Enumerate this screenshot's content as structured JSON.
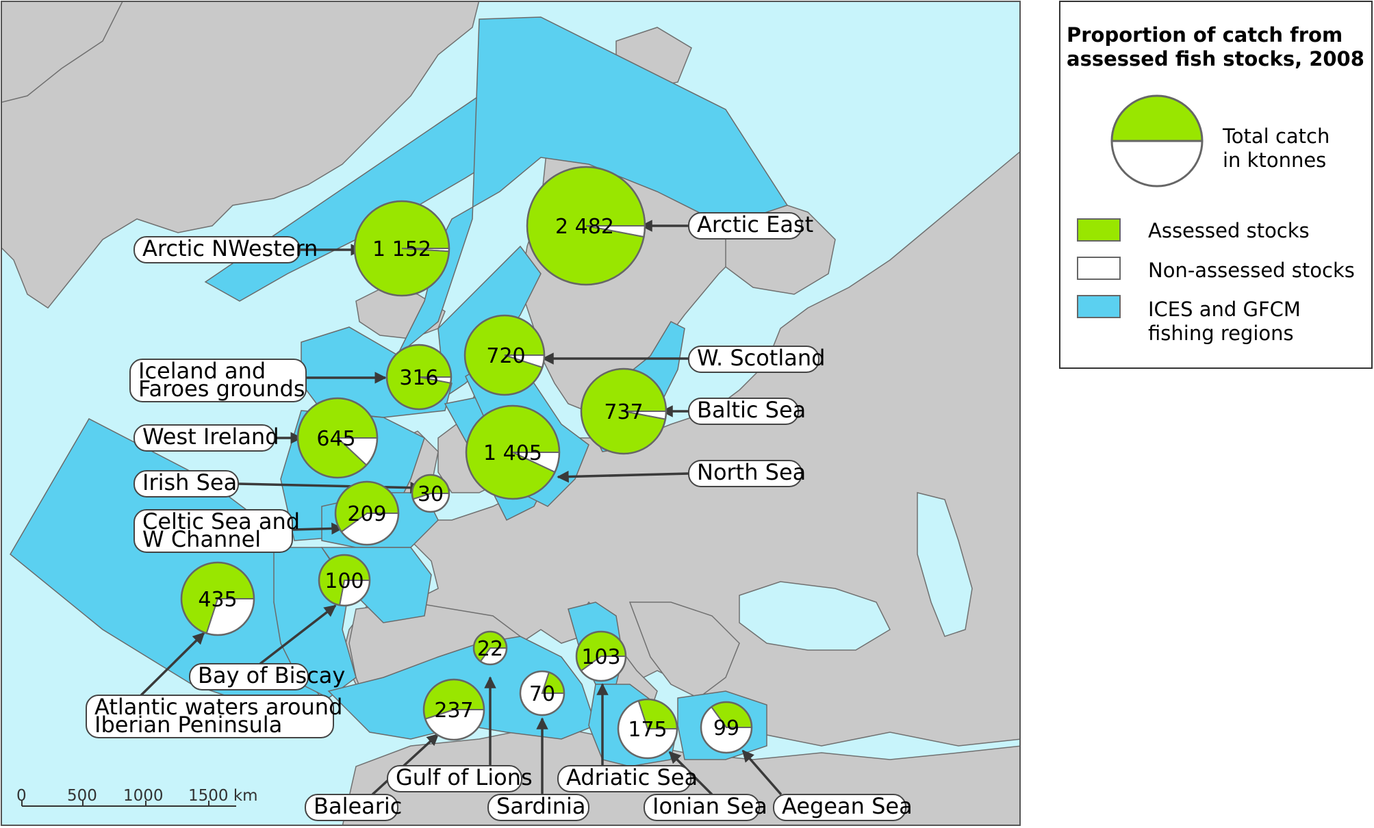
{
  "legend": {
    "title_line1": "Proportion of catch from",
    "title_line2": "assessed fish stocks, 2008",
    "circle_label_line1": "Total catch",
    "circle_label_line2": "in ktonnes",
    "assessed": "Assessed stocks",
    "non_assessed": "Non-assessed stocks",
    "regions_line1": "ICES and GFCM",
    "regions_line2": "fishing regions"
  },
  "colors": {
    "assessed": "#99e600",
    "non_assessed": "#ffffff",
    "regions": "#5bd0f0",
    "sea": "#c8f4fb",
    "land": "#c9c9c9"
  },
  "scale": {
    "ticks": [
      "0",
      "500",
      "1000",
      "1500 km"
    ]
  },
  "regions": [
    {
      "id": "arctic-nwestern",
      "label_lines": [
        "Arctic NWestern"
      ],
      "value": "1 152",
      "assessed_fraction": 0.99
    },
    {
      "id": "arctic-east",
      "label_lines": [
        "Arctic East"
      ],
      "value": "2 482",
      "assessed_fraction": 0.97
    },
    {
      "id": "iceland-faroes",
      "label_lines": [
        "Iceland and",
        "Faroes grounds"
      ],
      "value": "316",
      "assessed_fraction": 0.97
    },
    {
      "id": "w-scotland",
      "label_lines": [
        "W. Scotland"
      ],
      "value": "720",
      "assessed_fraction": 0.95
    },
    {
      "id": "west-ireland",
      "label_lines": [
        "West Ireland"
      ],
      "value": "645",
      "assessed_fraction": 0.88
    },
    {
      "id": "baltic-sea",
      "label_lines": [
        "Baltic Sea"
      ],
      "value": "737",
      "assessed_fraction": 0.97
    },
    {
      "id": "north-sea",
      "label_lines": [
        "North Sea"
      ],
      "value": "1 405",
      "assessed_fraction": 0.93
    },
    {
      "id": "irish-sea",
      "label_lines": [
        "Irish Sea"
      ],
      "value": "30",
      "assessed_fraction": 0.55
    },
    {
      "id": "celtic-sea",
      "label_lines": [
        "Celtic Sea and",
        "W Channel"
      ],
      "value": "209",
      "assessed_fraction": 0.6
    },
    {
      "id": "bay-of-biscay",
      "label_lines": [
        "Bay of Biscay"
      ],
      "value": "100",
      "assessed_fraction": 0.72
    },
    {
      "id": "atlantic-iberian",
      "label_lines": [
        "Atlantic waters around",
        "Iberian Peninsula"
      ],
      "value": "435",
      "assessed_fraction": 0.7
    },
    {
      "id": "gulf-of-lions",
      "label_lines": [
        "Gulf of Lions"
      ],
      "value": "22",
      "assessed_fraction": 0.65
    },
    {
      "id": "balearic",
      "label_lines": [
        "Balearic"
      ],
      "value": "237",
      "assessed_fraction": 0.55
    },
    {
      "id": "sardinia",
      "label_lines": [
        "Sardinia"
      ],
      "value": "70",
      "assessed_fraction": 0.2
    },
    {
      "id": "adriatic-sea",
      "label_lines": [
        "Adriatic Sea"
      ],
      "value": "103",
      "assessed_fraction": 0.6
    },
    {
      "id": "ionian-sea",
      "label_lines": [
        "Ionian Sea"
      ],
      "value": "175",
      "assessed_fraction": 0.3
    },
    {
      "id": "aegean-sea",
      "label_lines": [
        "Aegean Sea"
      ],
      "value": "99",
      "assessed_fraction": 0.35
    }
  ]
}
